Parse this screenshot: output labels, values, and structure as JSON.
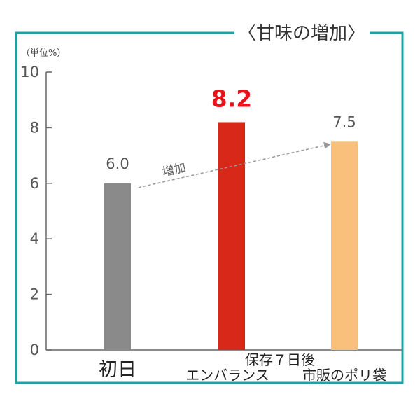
{
  "chart_data": {
    "type": "bar",
    "title": "〈甘味の増加〉",
    "unit_label": "（単位%）",
    "ylim": [
      0,
      10
    ],
    "yticks": [
      "0",
      "2",
      "4",
      "6",
      "8",
      "10"
    ],
    "categories": [
      {
        "lines": [
          "初日"
        ]
      },
      {
        "lines": [
          "保存７日後",
          "エンバランス"
        ]
      },
      {
        "lines": [
          "市販のポリ袋"
        ]
      }
    ],
    "values": [
      6.0,
      8.2,
      7.5
    ],
    "value_labels": [
      "6.0",
      "8.2",
      "7.5"
    ],
    "highlight_index": 1,
    "annotation": "増加",
    "grid": false
  },
  "colors": {
    "frame": "#1aa3a8",
    "axis": "#666666",
    "bars": [
      "#8a8a8a",
      "#d8281a",
      "#f8c07a"
    ],
    "highlight_text": "#e8141b",
    "arrow": "#999999"
  }
}
